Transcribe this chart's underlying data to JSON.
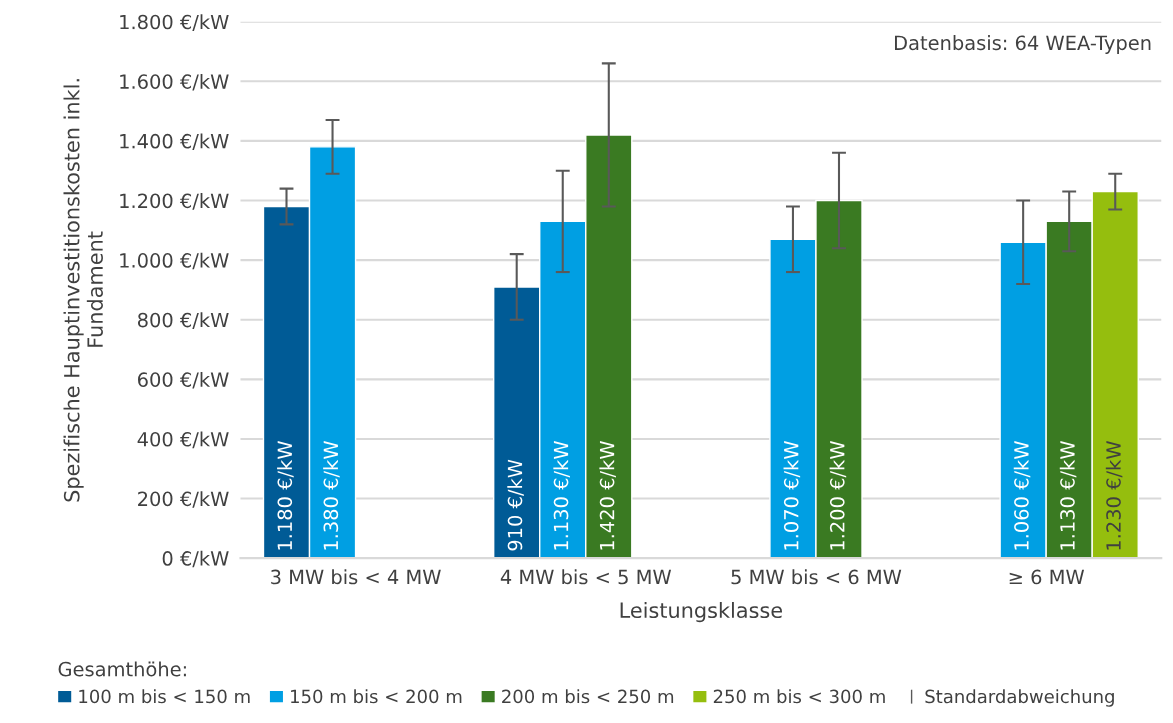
{
  "chart_data": {
    "type": "bar",
    "xlabel": "Leistungsklasse",
    "ylabel": "Spezifische Hauptinvestitionskosten inkl.\nFundament",
    "legend_title": "Gesamthöhe:",
    "categories": [
      "3 MW bis < 4 MW",
      "4 MW bis < 5 MW",
      "5 MW bis < 6 MW",
      "≥ 6 MW"
    ],
    "series": [
      {
        "name": "100 m bis < 150 m",
        "color": "#005b96",
        "values": [
          1180,
          910,
          null,
          null
        ],
        "errors": [
          [
            1120,
            1240
          ],
          [
            800,
            1020
          ],
          null,
          null
        ],
        "value_labels": [
          "1.180 €/kW",
          "910 €/kW",
          null,
          null
        ]
      },
      {
        "name": "150 m bis < 200 m",
        "color": "#009fe3",
        "values": [
          1380,
          1130,
          1070,
          1060
        ],
        "errors": [
          [
            1290,
            1470
          ],
          [
            960,
            1300
          ],
          [
            960,
            1180
          ],
          [
            920,
            1200
          ]
        ],
        "value_labels": [
          "1.380 €/kW",
          "1.130 €/kW",
          "1.070 €/kW",
          "1.060 €/kW"
        ]
      },
      {
        "name": "200 m bis < 250 m",
        "color": "#3a7a22",
        "values": [
          null,
          1420,
          1200,
          1130
        ],
        "errors": [
          null,
          [
            1180,
            1660
          ],
          [
            1040,
            1360
          ],
          [
            1030,
            1230
          ]
        ],
        "value_labels": [
          null,
          "1.420 €/kW",
          "1.200 €/kW",
          "1.130 €/kW"
        ]
      },
      {
        "name": "250 m bis < 300 m",
        "color": "#95be0e",
        "values": [
          null,
          null,
          null,
          1230
        ],
        "errors": [
          null,
          null,
          null,
          [
            1170,
            1290
          ]
        ],
        "value_labels": [
          null,
          null,
          null,
          "1.230 €/kW"
        ]
      }
    ],
    "ylim": [
      0,
      1800
    ],
    "yticks": [
      {
        "value": 0,
        "label": "0 €/kW"
      },
      {
        "value": 200,
        "label": "200 €/kW"
      },
      {
        "value": 400,
        "label": "400 €/kW"
      },
      {
        "value": 600,
        "label": "600 €/kW"
      },
      {
        "value": 800,
        "label": "800 €/kW"
      },
      {
        "value": 1000,
        "label": "1.000 €/kW"
      },
      {
        "value": 1200,
        "label": "1.200 €/kW"
      },
      {
        "value": 1400,
        "label": "1.400 €/kW"
      },
      {
        "value": 1600,
        "label": "1.600 €/kW"
      },
      {
        "value": 1800,
        "label": "1.800 €/kW"
      }
    ],
    "grid": "y",
    "legend": "bottom",
    "annotations": [
      "Datenbasis: 64 WEA-Typen",
      "Standardabweichung"
    ]
  }
}
